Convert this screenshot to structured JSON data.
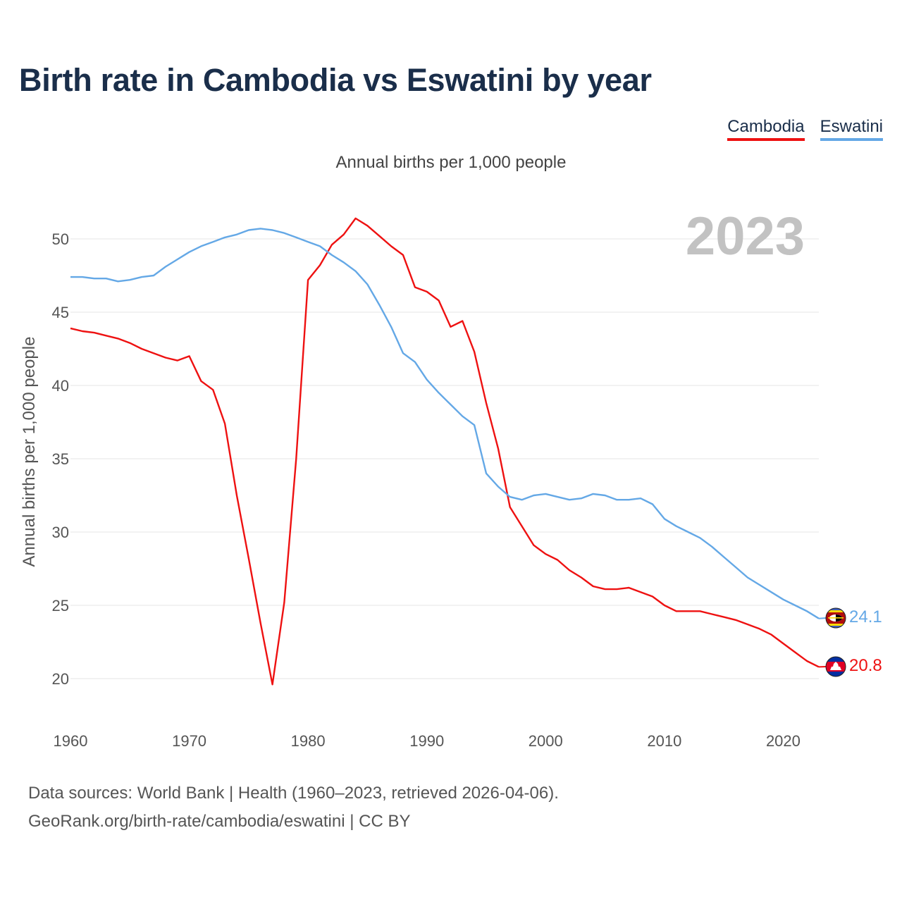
{
  "title": "Birth rate in Cambodia vs Eswatini by year",
  "subtitle": "Annual births per 1,000 people",
  "year_label": "2023",
  "legend": {
    "cambodia": {
      "label": "Cambodia",
      "color": "#ee1111"
    },
    "eswatini": {
      "label": "Eswatini",
      "color": "#64a8e6"
    }
  },
  "sources": {
    "line1": "Data sources: World Bank | Health (1960–2023, retrieved 2026-04-06).",
    "line2": "GeoRank.org/birth-rate/cambodia/eswatini | CC BY"
  },
  "chart_data": {
    "type": "line",
    "title": "Birth rate in Cambodia vs Eswatini by year",
    "xlabel": "",
    "ylabel": "Annual births per 1,000 people",
    "xlim": [
      1960,
      2023
    ],
    "ylim": [
      17,
      53
    ],
    "x_ticks": [
      1960,
      1970,
      1980,
      1990,
      2000,
      2010,
      2020
    ],
    "y_ticks": [
      20,
      25,
      30,
      35,
      40,
      45,
      50
    ],
    "grid": true,
    "legend_position": "top-right",
    "x": [
      1960,
      1961,
      1962,
      1963,
      1964,
      1965,
      1966,
      1967,
      1968,
      1969,
      1970,
      1971,
      1972,
      1973,
      1974,
      1975,
      1976,
      1977,
      1978,
      1979,
      1980,
      1981,
      1982,
      1983,
      1984,
      1985,
      1986,
      1987,
      1988,
      1989,
      1990,
      1991,
      1992,
      1993,
      1994,
      1995,
      1996,
      1997,
      1998,
      1999,
      2000,
      2001,
      2002,
      2003,
      2004,
      2005,
      2006,
      2007,
      2008,
      2009,
      2010,
      2011,
      2012,
      2013,
      2014,
      2015,
      2016,
      2017,
      2018,
      2019,
      2020,
      2021,
      2022,
      2023
    ],
    "series": [
      {
        "name": "Cambodia",
        "color": "#ee1111",
        "end_label": "20.8",
        "values": [
          43.9,
          43.7,
          43.6,
          43.4,
          43.2,
          42.9,
          42.5,
          42.2,
          41.9,
          41.7,
          42.0,
          40.3,
          39.7,
          37.4,
          32.5,
          28.2,
          23.8,
          19.6,
          25.2,
          35.0,
          47.2,
          48.2,
          49.6,
          50.3,
          51.4,
          50.9,
          50.2,
          49.5,
          48.9,
          46.7,
          46.4,
          45.8,
          44.0,
          44.4,
          42.3,
          38.8,
          35.7,
          31.7,
          30.4,
          29.1,
          28.5,
          28.1,
          27.4,
          26.9,
          26.3,
          26.1,
          26.1,
          26.2,
          25.9,
          25.6,
          25.0,
          24.6,
          24.6,
          24.6,
          24.4,
          24.2,
          24.0,
          23.7,
          23.4,
          23.0,
          22.4,
          21.8,
          21.2,
          20.8
        ]
      },
      {
        "name": "Eswatini",
        "color": "#64a8e6",
        "end_label": "24.1",
        "values": [
          47.4,
          47.4,
          47.3,
          47.3,
          47.1,
          47.2,
          47.4,
          47.5,
          48.1,
          48.6,
          49.1,
          49.5,
          49.8,
          50.1,
          50.3,
          50.6,
          50.7,
          50.6,
          50.4,
          50.1,
          49.8,
          49.5,
          48.9,
          48.4,
          47.8,
          46.9,
          45.5,
          44.0,
          42.2,
          41.6,
          40.4,
          39.5,
          38.7,
          37.9,
          37.3,
          34.0,
          33.1,
          32.4,
          32.2,
          32.5,
          32.6,
          32.4,
          32.2,
          32.3,
          32.6,
          32.5,
          32.2,
          32.2,
          32.3,
          31.9,
          30.9,
          30.4,
          30.0,
          29.6,
          29.0,
          28.3,
          27.6,
          26.9,
          26.4,
          25.9,
          25.4,
          25.0,
          24.6,
          24.1
        ]
      }
    ]
  }
}
